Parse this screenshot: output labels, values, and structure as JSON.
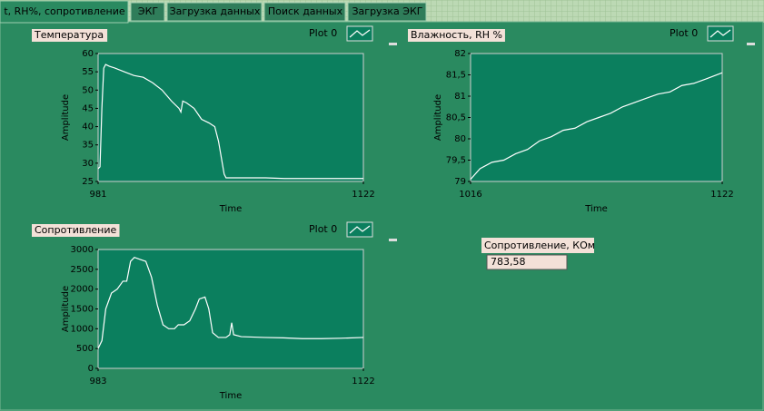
{
  "tabs": [
    "t, RH%, сопротивление",
    "ЭКГ",
    "Загрузка данных",
    "Поиск данных",
    "Загрузка ЭКГ"
  ],
  "chart_data": [
    {
      "type": "line",
      "title": "Температура",
      "xlabel": "Time",
      "ylabel": "Amplitude",
      "grid": false,
      "xlim": [
        981,
        1122
      ],
      "xticks": [
        981,
        1122
      ],
      "ylim": [
        25,
        60
      ],
      "yticks": [
        25,
        30,
        35,
        40,
        45,
        50,
        55,
        60
      ],
      "x": [
        981,
        982,
        983,
        984,
        985,
        987,
        990,
        995,
        1000,
        1005,
        1010,
        1015,
        1020,
        1024,
        1025,
        1026,
        1028,
        1032,
        1036,
        1040,
        1043,
        1045,
        1047,
        1048,
        1049,
        1050,
        1060,
        1070,
        1080,
        1090,
        1100,
        1110,
        1122
      ],
      "series": [
        {
          "name": "Plot 0",
          "color": "#ffffff",
          "values": [
            28.5,
            29,
            45,
            56,
            57,
            56.5,
            56,
            55,
            54,
            53.5,
            52,
            50,
            47,
            45,
            44,
            47,
            46.5,
            45,
            42,
            41,
            40,
            36,
            30,
            27,
            26,
            26,
            26,
            26,
            25.8,
            25.8,
            25.8,
            25.8,
            25.8
          ]
        }
      ]
    },
    {
      "type": "line",
      "title": "Влажность, RH %",
      "xlabel": "Time",
      "ylabel": "Amplitude",
      "grid": false,
      "xlim": [
        1016,
        1122
      ],
      "xticks": [
        1016,
        1122
      ],
      "ylim": [
        79,
        82
      ],
      "yticks": [
        79,
        {
          "value": 79.5,
          "label": "79,5"
        },
        80,
        {
          "value": 80.5,
          "label": "80,5"
        },
        81,
        {
          "value": 81.5,
          "label": "81,5"
        },
        82
      ],
      "x": [
        1016,
        1020,
        1025,
        1030,
        1035,
        1040,
        1045,
        1050,
        1055,
        1060,
        1065,
        1070,
        1075,
        1080,
        1085,
        1090,
        1095,
        1100,
        1105,
        1110,
        1115,
        1122
      ],
      "series": [
        {
          "name": "Plot 0",
          "color": "#ffffff",
          "values": [
            79.05,
            79.3,
            79.45,
            79.5,
            79.65,
            79.75,
            79.95,
            80.05,
            80.2,
            80.25,
            80.4,
            80.5,
            80.6,
            80.75,
            80.85,
            80.95,
            81.05,
            81.1,
            81.25,
            81.3,
            81.4,
            81.55
          ]
        }
      ]
    },
    {
      "type": "line",
      "title": "Сопротивление",
      "xlabel": "Time",
      "ylabel": "Amplitude",
      "grid": false,
      "xlim": [
        983,
        1122
      ],
      "xticks": [
        983,
        1122
      ],
      "ylim": [
        0,
        3000
      ],
      "yticks": [
        0,
        500,
        1000,
        1500,
        2000,
        2500,
        3000
      ],
      "x": [
        983,
        985,
        987,
        990,
        993,
        996,
        998,
        1000,
        1002,
        1005,
        1008,
        1011,
        1014,
        1017,
        1020,
        1023,
        1025,
        1028,
        1031,
        1034,
        1036,
        1039,
        1041,
        1043,
        1046,
        1050,
        1052,
        1053,
        1054,
        1058,
        1070,
        1080,
        1090,
        1100,
        1110,
        1122
      ],
      "series": [
        {
          "name": "Plot 0",
          "color": "#ffffff",
          "values": [
            500,
            700,
            1500,
            1900,
            2000,
            2200,
            2200,
            2700,
            2800,
            2750,
            2700,
            2300,
            1600,
            1100,
            1000,
            1000,
            1100,
            1100,
            1200,
            1500,
            1750,
            1800,
            1500,
            900,
            780,
            780,
            850,
            1150,
            850,
            800,
            780,
            770,
            750,
            750,
            760,
            780
          ]
        }
      ]
    }
  ],
  "indicator": {
    "label": "Сопротивление, КОм",
    "value": "783,58"
  }
}
